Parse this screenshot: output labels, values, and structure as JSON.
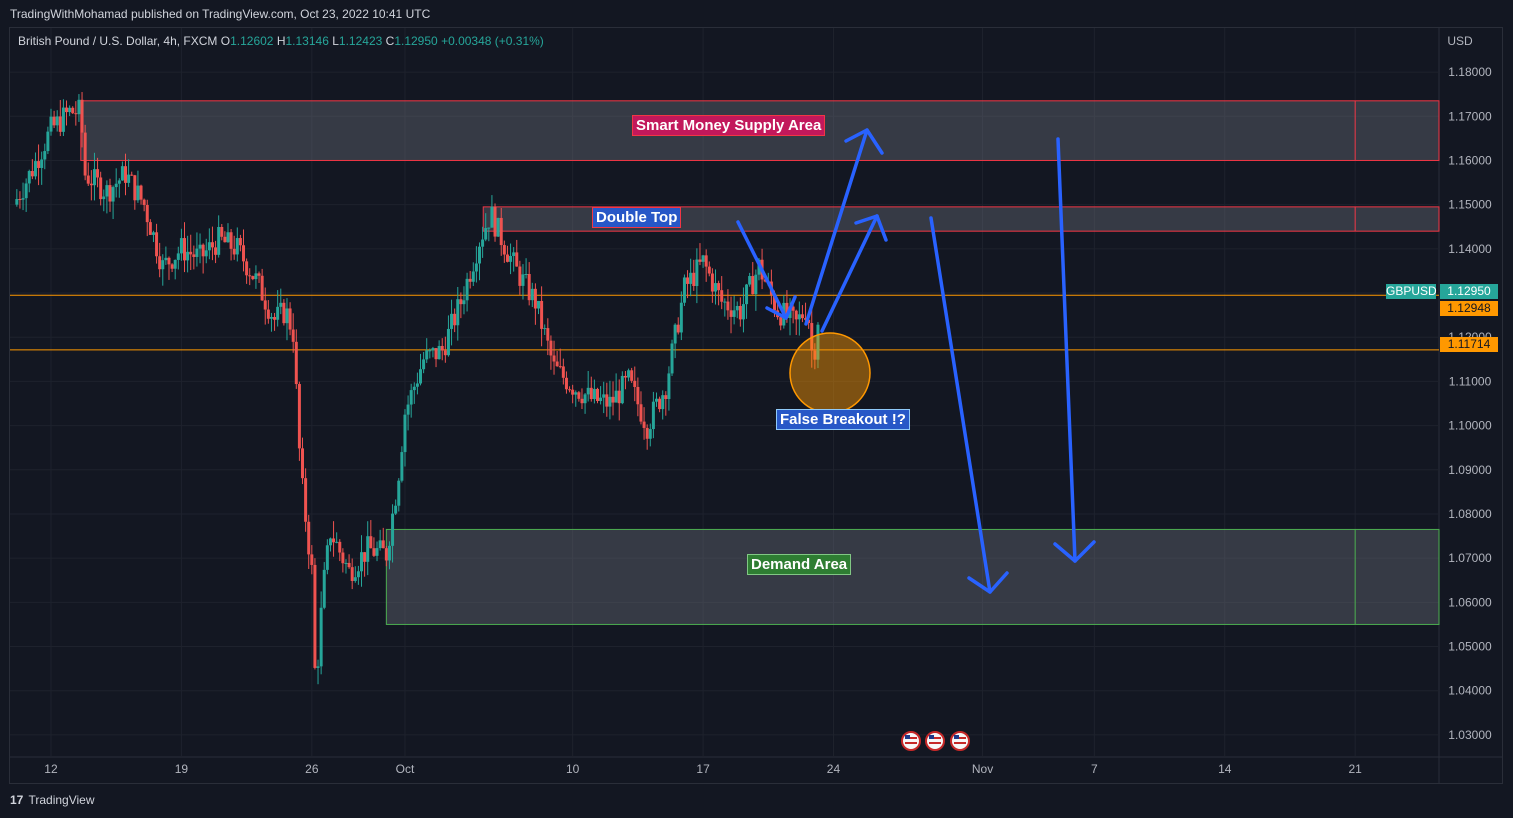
{
  "header": {
    "publisher": "TradingWithMohamad published on TradingView.com, Oct 23, 2022 10:41 UTC"
  },
  "legend": {
    "symbol": "British Pound / U.S. Dollar, 4h, FXCM",
    "o_label": "O",
    "o": "1.12602",
    "h_label": "H",
    "h": "1.13146",
    "l_label": "L",
    "l": "1.12423",
    "c_label": "C",
    "c": "1.12950",
    "change": "+0.00348 (+0.31%)"
  },
  "footer": {
    "brand": "TradingView",
    "logo": "17"
  },
  "chart_data": {
    "type": "candlestick",
    "currency": "USD",
    "ylim": [
      1.025,
      1.185
    ],
    "y_ticks": [
      "1.18000",
      "1.17000",
      "1.16000",
      "1.15000",
      "1.14000",
      "1.13000",
      "1.12000",
      "1.11000",
      "1.10000",
      "1.09000",
      "1.08000",
      "1.07000",
      "1.06000",
      "1.05000",
      "1.04000",
      "1.03000"
    ],
    "x_ticks": [
      "12",
      "19",
      "26",
      "Oct",
      "10",
      "17",
      "24",
      "Nov",
      "7",
      "14",
      "21"
    ],
    "x_tick_days": [
      12,
      19,
      26,
      31,
      40,
      47,
      54,
      62,
      68,
      75,
      82
    ],
    "xlim": [
      9.8,
      86.5
    ],
    "last_day": 53.3,
    "close_path": [
      [
        10,
        1.15
      ],
      [
        11,
        1.158
      ],
      [
        12,
        1.167
      ],
      [
        13,
        1.171
      ],
      [
        13.6,
        1.171
      ],
      [
        13.8,
        1.157
      ],
      [
        15,
        1.153
      ],
      [
        16,
        1.157
      ],
      [
        17,
        1.15
      ],
      [
        18,
        1.136
      ],
      [
        19,
        1.14
      ],
      [
        20,
        1.138
      ],
      [
        21,
        1.142
      ],
      [
        22,
        1.14
      ],
      [
        23,
        1.133
      ],
      [
        24,
        1.124
      ],
      [
        24.6,
        1.126
      ],
      [
        25,
        1.121
      ],
      [
        25.4,
        1.089
      ],
      [
        26,
        1.067
      ],
      [
        26.2,
        1.04
      ],
      [
        26.6,
        1.063
      ],
      [
        27,
        1.076
      ],
      [
        28,
        1.067
      ],
      [
        29,
        1.072
      ],
      [
        30,
        1.071
      ],
      [
        30.6,
        1.087
      ],
      [
        31,
        1.103
      ],
      [
        32,
        1.115
      ],
      [
        33,
        1.117
      ],
      [
        34,
        1.128
      ],
      [
        35,
        1.142
      ],
      [
        35.6,
        1.148
      ],
      [
        36,
        1.144
      ],
      [
        37,
        1.135
      ],
      [
        38,
        1.128
      ],
      [
        39,
        1.113
      ],
      [
        40,
        1.109
      ],
      [
        41,
        1.106
      ],
      [
        42,
        1.105
      ],
      [
        43,
        1.11
      ],
      [
        44,
        1.1
      ],
      [
        45,
        1.109
      ],
      [
        46,
        1.131
      ],
      [
        47,
        1.137
      ],
      [
        48,
        1.128
      ],
      [
        49,
        1.126
      ],
      [
        50,
        1.136
      ],
      [
        50.6,
        1.13
      ],
      [
        51,
        1.126
      ],
      [
        52,
        1.123
      ],
      [
        52.6,
        1.127
      ],
      [
        52.9,
        1.114
      ],
      [
        53.3,
        1.1295
      ]
    ],
    "last_price": "1.12950",
    "ask_price": "1.12948",
    "level_price": "1.11714",
    "symbol_tag": "GBPUSD",
    "zones": [
      {
        "name": "Smart Money Supply Area",
        "from": 1.16,
        "to": 1.1735,
        "start": 13.6,
        "mid": 82.0,
        "color": "#f23645"
      },
      {
        "name": "Double Top",
        "from": 1.144,
        "to": 1.1495,
        "start": 35.2,
        "mid": 82.0,
        "color": "#f23645"
      },
      {
        "name": "Demand Area",
        "from": 1.055,
        "to": 1.0765,
        "start": 30.0,
        "mid": 82.0,
        "color": "#4caf50"
      }
    ],
    "horizontal_lines": [
      1.1295,
      1.11714
    ],
    "annotations": [
      {
        "text": "Smart Money Supply Area",
        "bg": "#c2185b",
        "border": "#f23645"
      },
      {
        "text": "Double Top",
        "bg": "#2757c7",
        "border": "#f23645"
      },
      {
        "text": "Demand Area",
        "bg": "#2e7d32",
        "border": "#81c784"
      },
      {
        "text": "False Breakout !?",
        "bg": "#2757c7",
        "border": "#90caf9"
      }
    ],
    "event_icons": [
      "us-flag-icon",
      "us-flag-icon",
      "us-flag-icon"
    ],
    "colors": {
      "up": "#26a69a",
      "down": "#ef5350",
      "arrow": "#2962ff",
      "orange": "#ff9800",
      "tag_green": "#26a69a"
    }
  }
}
